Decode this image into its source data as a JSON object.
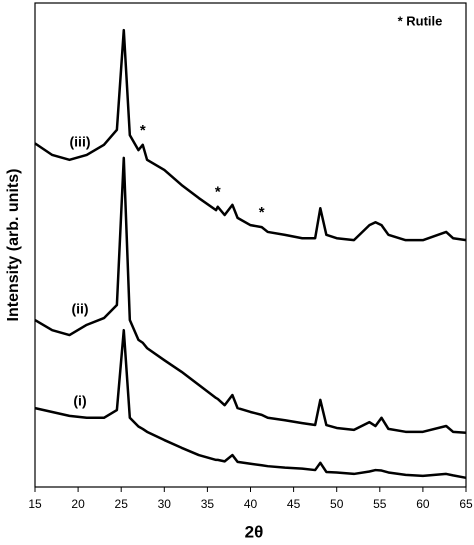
{
  "chart_data": {
    "type": "line",
    "x_label": "2θ",
    "y_label": "Intensity (arb. units)",
    "x": [
      15,
      17,
      19,
      21,
      23,
      24.5,
      25.3,
      26,
      27,
      27.5,
      28,
      30,
      32,
      34,
      36,
      36.2,
      37,
      37.9,
      38.5,
      40,
      41.3,
      42,
      44,
      46,
      47.5,
      48.1,
      48.8,
      50,
      52,
      53.8,
      54.5,
      55.2,
      56,
      58,
      60,
      62.7,
      63.5,
      65
    ],
    "series": [
      {
        "name": "(iii)",
        "color": "#000000",
        "values": [
          71,
          68.6,
          67.6,
          68.6,
          70.7,
          73.8,
          94.4,
          72.7,
          69.6,
          70.7,
          67.6,
          65.5,
          62.4,
          59.7,
          57.2,
          57.9,
          56.2,
          58.3,
          55.6,
          54.1,
          53.7,
          52.7,
          52.1,
          51.4,
          51.4,
          57.6,
          52.1,
          51.4,
          51,
          54.1,
          54.7,
          54.1,
          52.1,
          51,
          51,
          52.7,
          51.4,
          51
        ]
      },
      {
        "name": "(ii)",
        "color": "#000000",
        "values": [
          34.5,
          32.4,
          31.4,
          33.5,
          34.9,
          37.6,
          68,
          34.5,
          30.4,
          29.8,
          28.7,
          26.2,
          23.8,
          21.1,
          18.4,
          18.2,
          16.9,
          19,
          16.3,
          15.5,
          14.9,
          14.3,
          13.8,
          13.2,
          12.8,
          18,
          12.8,
          12.2,
          11.8,
          13.4,
          12.6,
          14.3,
          12,
          11.4,
          11.4,
          12.6,
          11.4,
          11.2
        ]
      },
      {
        "name": "(i)",
        "color": "#000000",
        "values": [
          16.3,
          15.5,
          14.7,
          14.3,
          14.3,
          15.9,
          32.4,
          14.3,
          12.5,
          12,
          11.4,
          9.7,
          8.1,
          6.6,
          5.6,
          5.6,
          5.3,
          6.6,
          5.2,
          4.8,
          4.5,
          4.3,
          4,
          3.8,
          3.5,
          5,
          3.1,
          3,
          2.7,
          3.2,
          3.5,
          3.4,
          3,
          2.5,
          2.3,
          2.7,
          2.4,
          1.9
        ]
      }
    ],
    "annotations": [
      {
        "text": "*",
        "x": 27.5
      },
      {
        "text": "*",
        "x": 36.2
      },
      {
        "text": "*",
        "x": 41.3
      }
    ],
    "legend_note": "* Rutile",
    "xlim": [
      15,
      65
    ],
    "xticks": [
      15,
      20,
      25,
      30,
      35,
      40,
      45,
      50,
      55,
      60,
      65
    ],
    "ylim": [
      0,
      100
    ],
    "grid": false
  }
}
